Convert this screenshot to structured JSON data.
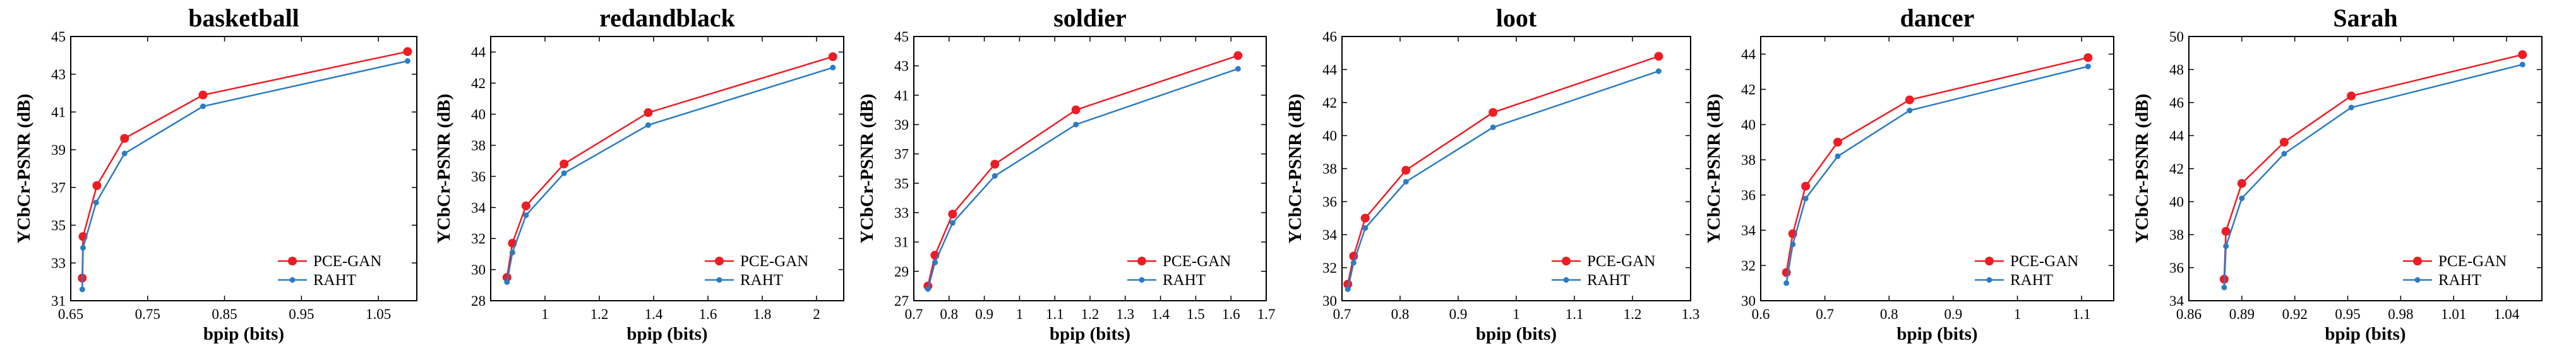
{
  "colors": {
    "pce_gan": "#ee1c24",
    "raht": "#2b7cc4"
  },
  "chart_data": [
    {
      "type": "line",
      "title": "basketball",
      "xlabel": "bpip (bits)",
      "ylabel": "YCbCr-PSNR (dB)",
      "xlim": [
        0.65,
        1.1
      ],
      "ylim": [
        31,
        45
      ],
      "xticks": [
        "0.65",
        "0.75",
        "0.85",
        "0.95",
        "1.05"
      ],
      "xtick_values": [
        0.65,
        0.75,
        0.85,
        0.95,
        1.05
      ],
      "yticks": [
        "31",
        "33",
        "35",
        "37",
        "39",
        "41",
        "43",
        "45"
      ],
      "ytick_values": [
        31,
        33,
        35,
        37,
        39,
        41,
        43,
        45
      ],
      "legend": "bottom-right",
      "series": [
        {
          "name": "PCE-GAN",
          "color": "#ee1c24",
          "x": [
            0.665,
            0.666,
            0.684,
            0.72,
            0.822,
            1.088
          ],
          "y": [
            32.2,
            34.4,
            37.1,
            39.6,
            41.9,
            44.2
          ]
        },
        {
          "name": "RAHT",
          "color": "#2b7cc4",
          "x": [
            0.665,
            0.666,
            0.683,
            0.72,
            0.822,
            1.088
          ],
          "y": [
            31.6,
            33.8,
            36.2,
            38.8,
            41.3,
            43.7
          ]
        }
      ]
    },
    {
      "type": "line",
      "title": "redandblack",
      "xlabel": "bpip (bits)",
      "ylabel": "YCbCr-PSNR (dB)",
      "xlim": [
        0.8,
        2.1
      ],
      "ylim": [
        28,
        45
      ],
      "xticks": [
        "1",
        "1.2",
        "1.4",
        "1.6",
        "1.8",
        "2"
      ],
      "xtick_values": [
        1,
        1.2,
        1.4,
        1.6,
        1.8,
        2
      ],
      "yticks": [
        "28",
        "30",
        "32",
        "34",
        "36",
        "38",
        "40",
        "42",
        "44"
      ],
      "ytick_values": [
        28,
        30,
        32,
        34,
        36,
        38,
        40,
        42,
        44
      ],
      "legend": "bottom-right",
      "series": [
        {
          "name": "PCE-GAN",
          "color": "#ee1c24",
          "x": [
            0.86,
            0.88,
            0.93,
            1.07,
            1.38,
            2.06
          ],
          "y": [
            29.5,
            31.7,
            34.1,
            36.8,
            40.1,
            43.7
          ]
        },
        {
          "name": "RAHT",
          "color": "#2b7cc4",
          "x": [
            0.86,
            0.88,
            0.93,
            1.07,
            1.38,
            2.06
          ],
          "y": [
            29.2,
            31.1,
            33.5,
            36.2,
            39.3,
            43.0
          ]
        }
      ]
    },
    {
      "type": "line",
      "title": "soldier",
      "xlabel": "bpip (bits)",
      "ylabel": "YCbCr-PSNR (dB)",
      "xlim": [
        0.7,
        1.7
      ],
      "ylim": [
        27,
        45
      ],
      "xticks": [
        "0.7",
        "0.8",
        "0.9",
        "1",
        "1.1",
        "1.2",
        "1.3",
        "1.4",
        "1.5",
        "1.6",
        "1.7"
      ],
      "xtick_values": [
        0.7,
        0.8,
        0.9,
        1,
        1.1,
        1.2,
        1.3,
        1.4,
        1.5,
        1.6,
        1.7
      ],
      "yticks": [
        "27",
        "29",
        "31",
        "33",
        "35",
        "37",
        "39",
        "41",
        "43",
        "45"
      ],
      "ytick_values": [
        27,
        29,
        31,
        33,
        35,
        37,
        39,
        41,
        43,
        45
      ],
      "legend": "bottom-right",
      "series": [
        {
          "name": "PCE-GAN",
          "color": "#ee1c24",
          "x": [
            0.74,
            0.76,
            0.81,
            0.93,
            1.16,
            1.62
          ],
          "y": [
            28.0,
            30.1,
            32.9,
            36.3,
            40.0,
            43.7
          ]
        },
        {
          "name": "RAHT",
          "color": "#2b7cc4",
          "x": [
            0.74,
            0.76,
            0.81,
            0.93,
            1.16,
            1.62
          ],
          "y": [
            27.8,
            29.6,
            32.3,
            35.5,
            39.0,
            42.8
          ]
        }
      ]
    },
    {
      "type": "line",
      "title": "loot",
      "xlabel": "bpip (bits)",
      "ylabel": "YCbCr-PSNR (dB)",
      "xlim": [
        0.7,
        1.3
      ],
      "ylim": [
        30,
        46
      ],
      "xticks": [
        "0.7",
        "0.8",
        "0.9",
        "1",
        "1.1",
        "1.2",
        "1.3"
      ],
      "xtick_values": [
        0.7,
        0.8,
        0.9,
        1,
        1.1,
        1.2,
        1.3
      ],
      "yticks": [
        "30",
        "32",
        "34",
        "36",
        "38",
        "40",
        "42",
        "44",
        "46"
      ],
      "ytick_values": [
        30,
        32,
        34,
        36,
        38,
        40,
        42,
        44,
        46
      ],
      "legend": "bottom-right",
      "series": [
        {
          "name": "PCE-GAN",
          "color": "#ee1c24",
          "x": [
            0.71,
            0.72,
            0.74,
            0.81,
            0.96,
            1.245
          ],
          "y": [
            31.0,
            32.7,
            35.0,
            37.9,
            41.4,
            44.8
          ]
        },
        {
          "name": "RAHT",
          "color": "#2b7cc4",
          "x": [
            0.71,
            0.72,
            0.74,
            0.81,
            0.96,
            1.245
          ],
          "y": [
            30.7,
            32.3,
            34.4,
            37.2,
            40.5,
            43.9
          ]
        }
      ]
    },
    {
      "type": "line",
      "title": "dancer",
      "xlabel": "bpip (bits)",
      "ylabel": "YCbCr-PSNR (dB)",
      "xlim": [
        0.6,
        1.15
      ],
      "ylim": [
        30,
        45
      ],
      "xticks": [
        "0.6",
        "0.7",
        "0.8",
        "0.9",
        "1",
        "1.1"
      ],
      "xtick_values": [
        0.6,
        0.7,
        0.8,
        0.9,
        1,
        1.1
      ],
      "yticks": [
        "30",
        "32",
        "34",
        "36",
        "38",
        "40",
        "42",
        "44"
      ],
      "ytick_values": [
        30,
        32,
        34,
        36,
        38,
        40,
        42,
        44
      ],
      "legend": "bottom-right",
      "series": [
        {
          "name": "PCE-GAN",
          "color": "#ee1c24",
          "x": [
            0.64,
            0.65,
            0.67,
            0.72,
            0.832,
            1.11
          ],
          "y": [
            31.6,
            33.8,
            36.5,
            39.0,
            41.4,
            43.8
          ]
        },
        {
          "name": "RAHT",
          "color": "#2b7cc4",
          "x": [
            0.64,
            0.65,
            0.67,
            0.72,
            0.832,
            1.11
          ],
          "y": [
            31.0,
            33.2,
            35.8,
            38.2,
            40.8,
            43.3
          ]
        }
      ]
    },
    {
      "type": "line",
      "title": "Sarah",
      "xlabel": "bpip (bits)",
      "ylabel": "YCbCr-PSNR (dB)",
      "xlim": [
        0.86,
        1.06
      ],
      "ylim": [
        34,
        50
      ],
      "xticks": [
        "0.86",
        "0.89",
        "0.92",
        "0.95",
        "0.98",
        "1.01",
        "1.04"
      ],
      "xtick_values": [
        0.86,
        0.89,
        0.92,
        0.95,
        0.98,
        1.01,
        1.04
      ],
      "yticks": [
        "34",
        "36",
        "38",
        "40",
        "42",
        "44",
        "46",
        "48",
        "50"
      ],
      "ytick_values": [
        34,
        36,
        38,
        40,
        42,
        44,
        46,
        48,
        50
      ],
      "legend": "bottom-right",
      "series": [
        {
          "name": "PCE-GAN",
          "color": "#ee1c24",
          "x": [
            0.88,
            0.881,
            0.89,
            0.914,
            0.952,
            1.049
          ],
          "y": [
            35.3,
            38.2,
            41.1,
            43.6,
            46.4,
            48.9
          ]
        },
        {
          "name": "RAHT",
          "color": "#2b7cc4",
          "x": [
            0.88,
            0.881,
            0.89,
            0.914,
            0.952,
            1.049
          ],
          "y": [
            34.8,
            37.3,
            40.2,
            42.9,
            45.7,
            48.3
          ]
        }
      ]
    }
  ]
}
